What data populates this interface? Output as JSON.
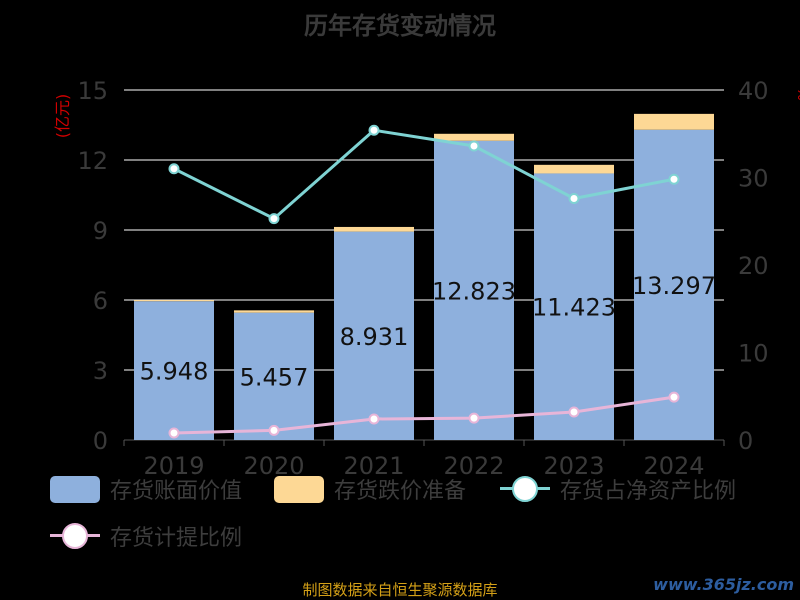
{
  "title": "历年存货变动情况",
  "source": "制图数据来自恒生聚源数据库",
  "watermark": "www.365jz.com",
  "colors": {
    "book_value": "#8eb0dd",
    "impairment": "#fdd895",
    "ratio_line": "#7fd3d3",
    "provision_line": "#e7b5d8",
    "axis_label_red": "#d20000",
    "axis_text": "#3a3a3a",
    "grid": "#ffffff"
  },
  "legend": [
    {
      "label": "存货账面价值",
      "kind": "bar",
      "color": "#8eb0dd"
    },
    {
      "label": "存货跌价准备",
      "kind": "bar",
      "color": "#fdd895"
    },
    {
      "label": "存货占净资产比例",
      "kind": "line",
      "color": "#7fd3d3"
    },
    {
      "label": "存货计提比例",
      "kind": "line",
      "color": "#e7b5d8"
    }
  ],
  "chart_data": {
    "type": "bar",
    "title": "历年存货变动情况",
    "categories": [
      "2019",
      "2020",
      "2021",
      "2022",
      "2023",
      "2024"
    ],
    "y_left": {
      "label": "(亿元)",
      "range": [
        0,
        15
      ],
      "ticks": [
        0,
        3,
        6,
        9,
        12,
        15
      ]
    },
    "y_right": {
      "label": "%",
      "range": [
        0,
        40
      ],
      "ticks": [
        0,
        10,
        20,
        30,
        40
      ]
    },
    "grid": true,
    "legend_position": "bottom",
    "series": [
      {
        "name": "存货账面价值",
        "type": "bar",
        "stack": "inventory",
        "axis": "left",
        "values": [
          5.948,
          5.457,
          8.931,
          12.823,
          11.423,
          13.297
        ]
      },
      {
        "name": "存货跌价准备",
        "type": "bar",
        "stack": "inventory",
        "axis": "left",
        "values": [
          0.05,
          0.1,
          0.2,
          0.3,
          0.37,
          0.68
        ]
      },
      {
        "name": "存货占净资产比例",
        "type": "line",
        "axis": "right",
        "values": [
          31.0,
          25.3,
          35.4,
          33.6,
          27.6,
          29.8
        ]
      },
      {
        "name": "存货计提比例",
        "type": "line",
        "axis": "right",
        "values": [
          0.8,
          1.1,
          2.4,
          2.5,
          3.2,
          4.9
        ]
      }
    ],
    "data_labels": [
      "5.948",
      "5.457",
      "8.931",
      "12.823",
      "11.423",
      "13.297"
    ]
  }
}
